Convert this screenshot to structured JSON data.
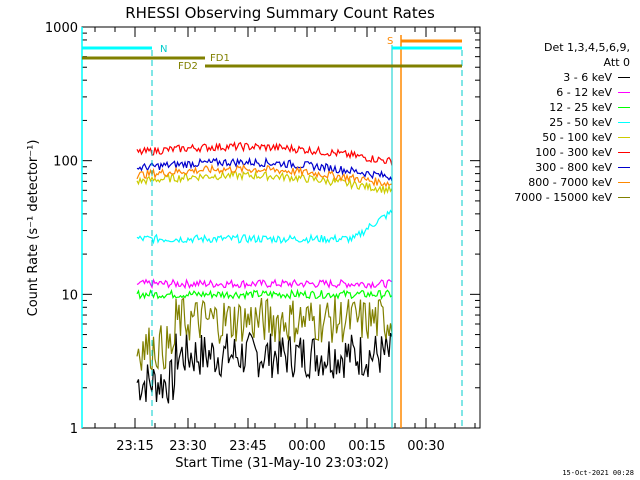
{
  "chart_data": {
    "type": "line",
    "title": "RHESSI Observing Summary Count Rates",
    "xlabel": "Start Time (31-May-10 23:03:02)",
    "ylabel": "Count Rate (s⁻¹ detector⁻¹)",
    "yscale": "log",
    "ylim": [
      1,
      1000
    ],
    "xlim_minutes_label": "23:03 to 00:42",
    "x_ticks": [
      "23:15",
      "23:30",
      "23:45",
      "00:00",
      "00:15",
      "00:30"
    ],
    "y_ticks": [
      "1",
      "10",
      "100",
      "1000"
    ],
    "grid": false,
    "legend_title_1": "Det 1,3,4,5,6,9,",
    "legend_title_2": "Att 0",
    "legend_position": "right",
    "annotations": {
      "N": "N",
      "S": "S",
      "FD1": "FD1",
      "FD2": "FD2"
    },
    "series": [
      {
        "name": "3 - 6 keV",
        "color": "#000000",
        "level": 2.2
      },
      {
        "name": "6 - 12 keV",
        "color": "#ff00ff",
        "level": 12
      },
      {
        "name": "12 - 25 keV",
        "color": "#00ff00",
        "level": 10
      },
      {
        "name": "25 - 50 keV",
        "color": "#00ffff",
        "level": 26
      },
      {
        "name": "50 - 100 keV",
        "color": "#cccc00",
        "level": 70
      },
      {
        "name": "100 - 300 keV",
        "color": "#ff0000",
        "level": 115
      },
      {
        "name": "300 - 800 keV",
        "color": "#0000cc",
        "level": 88
      },
      {
        "name": "800 - 7000 keV",
        "color": "#ff8800",
        "level": 78
      },
      {
        "name": "7000 - 15000 keV",
        "color": "#808000",
        "level": 4
      }
    ]
  },
  "footer": "15-Oct-2021 00:28"
}
